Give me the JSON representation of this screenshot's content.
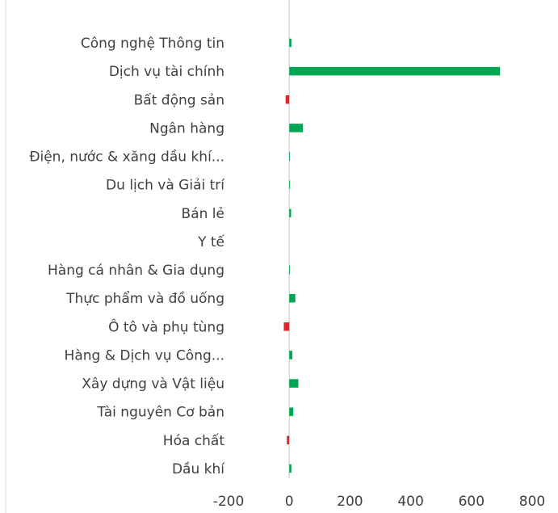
{
  "chart_data": {
    "type": "bar",
    "orientation": "horizontal",
    "categories": [
      "Công nghệ Thông tin",
      "Dịch vụ tài chính",
      "Bất động sản",
      "Ngân hàng",
      "Điện, nước & xăng dầu khí...",
      "Du lịch và Giải trí",
      "Bán lẻ",
      "Y tế",
      "Hàng cá nhân & Gia dụng",
      "Thực phẩm và đồ uống",
      "Ô tô và phụ tùng",
      "Hàng & Dịch vụ Công...",
      "Xây dựng và Vật liệu",
      "Tài nguyên Cơ bản",
      "Hóa chất",
      "Dầu khí"
    ],
    "values": [
      7,
      694,
      -12,
      45,
      2,
      1,
      6,
      0,
      1,
      20,
      -18,
      10,
      30,
      13,
      -8,
      7
    ],
    "x_ticks": [
      "-200",
      "0",
      "200",
      "400",
      "600",
      "800"
    ],
    "xlim": [
      -200,
      800
    ],
    "colors": {
      "positive": "#00a651",
      "negative": "#e0262a",
      "axis": "#d9d9d9"
    },
    "grid": false,
    "legend": "none"
  }
}
